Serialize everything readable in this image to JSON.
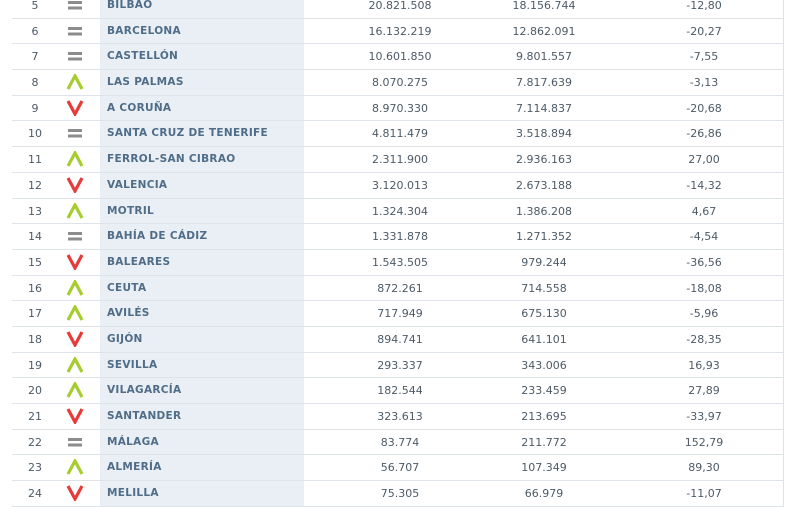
{
  "colors": {
    "up": "#a6cc2d",
    "down": "#e63b3a",
    "equal": "#8c8c8c",
    "name_text": "#4f6d88",
    "band": "#e9eff4"
  },
  "rows": [
    {
      "rank": "5",
      "trend": "equal",
      "port": "BILBAO",
      "value_a": "20.821.508",
      "value_b": "18.156.744",
      "change": "-12,80"
    },
    {
      "rank": "6",
      "trend": "equal",
      "port": "BARCELONA",
      "value_a": "16.132.219",
      "value_b": "12.862.091",
      "change": "-20,27"
    },
    {
      "rank": "7",
      "trend": "equal",
      "port": "CASTELLÓN",
      "value_a": "10.601.850",
      "value_b": "9.801.557",
      "change": "-7,55"
    },
    {
      "rank": "8",
      "trend": "up",
      "port": "LAS PALMAS",
      "value_a": "8.070.275",
      "value_b": "7.817.639",
      "change": "-3,13"
    },
    {
      "rank": "9",
      "trend": "down",
      "port": "A CORUÑA",
      "value_a": "8.970.330",
      "value_b": "7.114.837",
      "change": "-20,68"
    },
    {
      "rank": "10",
      "trend": "equal",
      "port": "SANTA CRUZ DE TENERIFE",
      "value_a": "4.811.479",
      "value_b": "3.518.894",
      "change": "-26,86"
    },
    {
      "rank": "11",
      "trend": "up",
      "port": "FERROL-SAN CIBRAO",
      "value_a": "2.311.900",
      "value_b": "2.936.163",
      "change": "27,00"
    },
    {
      "rank": "12",
      "trend": "down",
      "port": "VALENCIA",
      "value_a": "3.120.013",
      "value_b": "2.673.188",
      "change": "-14,32"
    },
    {
      "rank": "13",
      "trend": "up",
      "port": "MOTRIL",
      "value_a": "1.324.304",
      "value_b": "1.386.208",
      "change": "4,67"
    },
    {
      "rank": "14",
      "trend": "equal",
      "port": "BAHÍA DE CÁDIZ",
      "value_a": "1.331.878",
      "value_b": "1.271.352",
      "change": "-4,54"
    },
    {
      "rank": "15",
      "trend": "down",
      "port": "BALEARES",
      "value_a": "1.543.505",
      "value_b": "979.244",
      "change": "-36,56"
    },
    {
      "rank": "16",
      "trend": "up",
      "port": "CEUTA",
      "value_a": "872.261",
      "value_b": "714.558",
      "change": "-18,08"
    },
    {
      "rank": "17",
      "trend": "up",
      "port": "AVILÉS",
      "value_a": "717.949",
      "value_b": "675.130",
      "change": "-5,96"
    },
    {
      "rank": "18",
      "trend": "down",
      "port": "GIJÓN",
      "value_a": "894.741",
      "value_b": "641.101",
      "change": "-28,35"
    },
    {
      "rank": "19",
      "trend": "up",
      "port": "SEVILLA",
      "value_a": "293.337",
      "value_b": "343.006",
      "change": "16,93"
    },
    {
      "rank": "20",
      "trend": "up",
      "port": "VILAGARCÍA",
      "value_a": "182.544",
      "value_b": "233.459",
      "change": "27,89"
    },
    {
      "rank": "21",
      "trend": "down",
      "port": "SANTANDER",
      "value_a": "323.613",
      "value_b": "213.695",
      "change": "-33,97"
    },
    {
      "rank": "22",
      "trend": "equal",
      "port": "MÁLAGA",
      "value_a": "83.774",
      "value_b": "211.772",
      "change": "152,79"
    },
    {
      "rank": "23",
      "trend": "up",
      "port": "ALMERÍA",
      "value_a": "56.707",
      "value_b": "107.349",
      "change": "89,30"
    },
    {
      "rank": "24",
      "trend": "down",
      "port": "MELILLA",
      "value_a": "75.305",
      "value_b": "66.979",
      "change": "-11,07"
    }
  ]
}
